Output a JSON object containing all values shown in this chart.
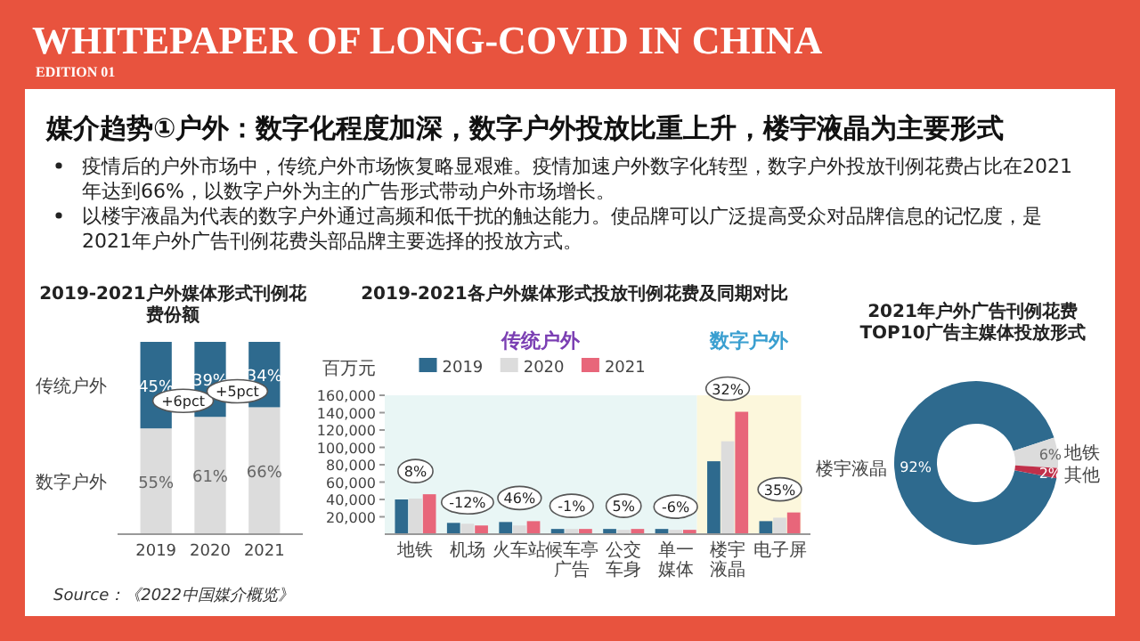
{
  "chart_data": [
    {
      "type": "other",
      "title": "WHITEPAPER OF LONG-COVID IN CHINA",
      "subtitle": "EDITION 01",
      "annotations": [
        "媒介趋势①户外：数字化程度加深，数字户外投放比重上升，楼宇液晶为主要形式",
        "疫情后的户外市场中，传统户外市场恢复略显艰难。疫情加速户外数字化转型，数字户外投放刊例花费占比在2021年达到66%，以数字户外为主的广告形式带动户外市场增长。",
        "以楼宇液晶为代表的数字户外通过高频和低干扰的触达能力。使品牌可以广泛提高受众对品牌信息的记忆度，是2021年户外广告刊例花费头部品牌主要选择的投放方式。",
        "Source：《2022中国媒介概览》"
      ]
    },
    {
      "type": "bar",
      "title": "2019-2021户外媒体形式刊例花费份额",
      "categories": [
        "2019",
        "2020",
        "2021"
      ],
      "stacked": true,
      "series": [
        {
          "name": "数字户外",
          "color": "#dcdcdc",
          "values": [
            55,
            61,
            66
          ],
          "value_labels": [
            "55%",
            "61%",
            "66%"
          ]
        },
        {
          "name": "传统户外",
          "color": "#2e6a8e",
          "values": [
            45,
            39,
            34
          ],
          "value_labels": [
            "45%",
            "39%",
            "34%"
          ]
        }
      ],
      "annotations": [
        "+6pct",
        "+5pct"
      ]
    },
    {
      "type": "bar",
      "title": "2019-2021各户外媒体形式投放刊例花费及同期对比",
      "ylabel": "百万元",
      "categories": [
        "地铁",
        "机场",
        "火车站",
        "候车亭广告",
        "公交车身",
        "单一媒体",
        "楼宇液晶",
        "电子屏"
      ],
      "ylim": [
        0,
        160000
      ],
      "yticks": [
        {
          "value": 20000,
          "label": "20,000"
        },
        {
          "value": 40000,
          "label": "40,000"
        },
        {
          "value": 60000,
          "label": "60,000"
        },
        {
          "value": 80000,
          "label": "80,000"
        },
        {
          "value": 100000,
          "label": "100,000"
        },
        {
          "value": 120000,
          "label": "120,000"
        },
        {
          "value": 140000,
          "label": "140,000"
        },
        {
          "value": 160000,
          "label": "160,000"
        }
      ],
      "legend": "top",
      "series": [
        {
          "name": "2019",
          "color": "#2e6a8e",
          "values": [
            40000,
            13000,
            14000,
            6000,
            6000,
            6000,
            84000,
            15000
          ]
        },
        {
          "name": "2020",
          "color": "#dcdcdc",
          "values": [
            41000,
            12000,
            10000,
            6000,
            5000,
            5000,
            107000,
            19000
          ]
        },
        {
          "name": "2021",
          "color": "#e8667a",
          "values": [
            46000,
            10000,
            15000,
            6000,
            6000,
            5000,
            141000,
            25000
          ]
        }
      ],
      "bands": [
        {
          "axis": "x",
          "from": "地铁",
          "to": "单一媒体",
          "label": "传统户外",
          "color": "#e9f6f5"
        },
        {
          "axis": "x",
          "from": "楼宇液晶",
          "to": "电子屏",
          "label": "数字户外",
          "color": "#fcf7dc"
        }
      ],
      "annotations": [
        {
          "text": "8%",
          "x": "地铁",
          "y": 46000
        },
        {
          "text": "-12%",
          "x": "机场",
          "y": 10000
        },
        {
          "text": "46%",
          "x": "火车站",
          "y": 15000
        },
        {
          "text": "-1%",
          "x": "候车亭广告",
          "y": 6000
        },
        {
          "text": "5%",
          "x": "公交车身",
          "y": 6000
        },
        {
          "text": "-6%",
          "x": "单一媒体",
          "y": 5000
        },
        {
          "text": "32%",
          "x": "楼宇液晶",
          "y": 141000
        },
        {
          "text": "35%",
          "x": "电子屏",
          "y": 25000
        }
      ]
    },
    {
      "type": "donut",
      "title": "2021年户外广告刊例花费\nTOP10广告主媒体投放形式",
      "categories": [
        "楼宇液晶",
        "地铁",
        "其他"
      ],
      "values": [
        92,
        6,
        2
      ],
      "colors": [
        "#2e6a8e",
        "#dcdcdc",
        "#c0304a"
      ],
      "value_labels": [
        "92%",
        "6%",
        "2%"
      ]
    }
  ]
}
